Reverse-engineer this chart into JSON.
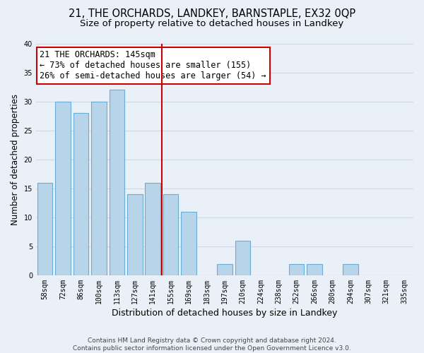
{
  "title1": "21, THE ORCHARDS, LANDKEY, BARNSTAPLE, EX32 0QP",
  "title2": "Size of property relative to detached houses in Landkey",
  "xlabel": "Distribution of detached houses by size in Landkey",
  "ylabel": "Number of detached properties",
  "bar_labels": [
    "58sqm",
    "72sqm",
    "86sqm",
    "100sqm",
    "113sqm",
    "127sqm",
    "141sqm",
    "155sqm",
    "169sqm",
    "183sqm",
    "197sqm",
    "210sqm",
    "224sqm",
    "238sqm",
    "252sqm",
    "266sqm",
    "280sqm",
    "294sqm",
    "307sqm",
    "321sqm",
    "335sqm"
  ],
  "bar_values": [
    16,
    30,
    28,
    30,
    32,
    14,
    16,
    14,
    11,
    0,
    2,
    6,
    0,
    0,
    2,
    2,
    0,
    2,
    0,
    0,
    0
  ],
  "bar_color": "#b8d4e8",
  "bar_edge_color": "#6aaed6",
  "vline_x": 6.5,
  "vline_color": "#cc0000",
  "annotation_line1": "21 THE ORCHARDS: 145sqm",
  "annotation_line2": "← 73% of detached houses are smaller (155)",
  "annotation_line3": "26% of semi-detached houses are larger (54) →",
  "annotation_box_facecolor": "white",
  "annotation_box_edgecolor": "#cc0000",
  "ylim": [
    0,
    40
  ],
  "yticks": [
    0,
    5,
    10,
    15,
    20,
    25,
    30,
    35,
    40
  ],
  "grid_color": "#ccd8e8",
  "background_color": "#eaf0f8",
  "footer_text": "Contains HM Land Registry data © Crown copyright and database right 2024.\nContains public sector information licensed under the Open Government Licence v3.0.",
  "title1_fontsize": 10.5,
  "title2_fontsize": 9.5,
  "xlabel_fontsize": 9,
  "ylabel_fontsize": 8.5,
  "tick_fontsize": 7,
  "annotation_fontsize": 8.5,
  "footer_fontsize": 6.5
}
